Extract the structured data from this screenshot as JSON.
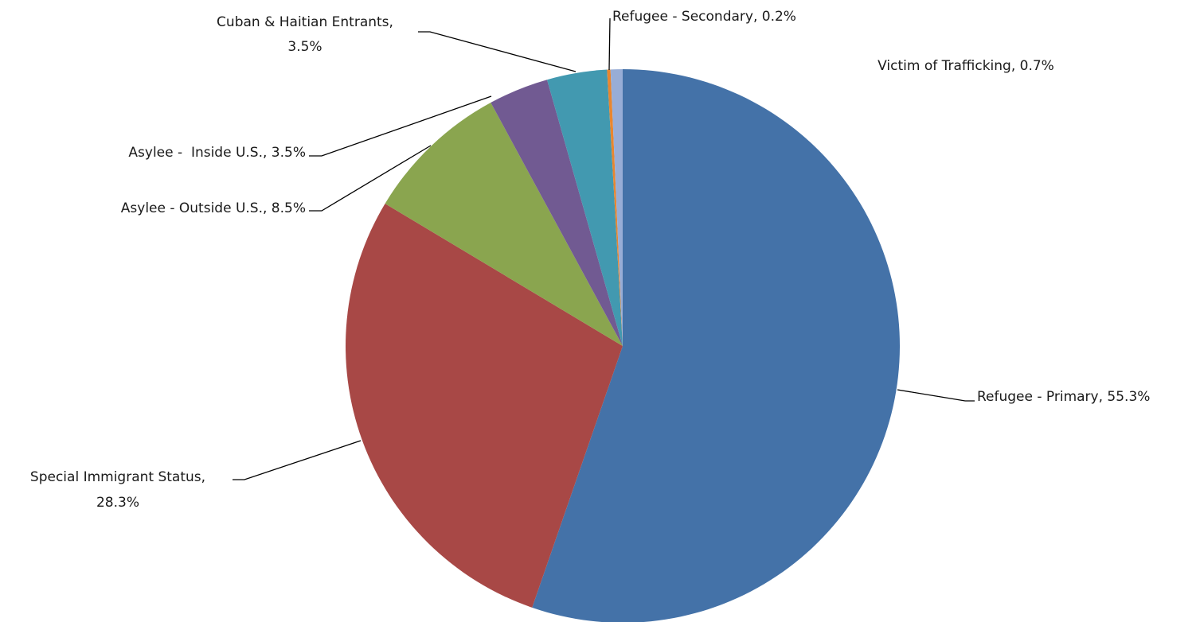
{
  "chart_data": {
    "type": "pie",
    "title": "",
    "slices": [
      {
        "name": "Refugee - Primary",
        "value": 55.3,
        "label": [
          "Refugee - Primary, 55.3%"
        ],
        "color": "#4472A8"
      },
      {
        "name": "Special Immigrant Status",
        "value": 28.3,
        "label": [
          "Special Immigrant Status,",
          "28.3%"
        ],
        "color": "#A84846"
      },
      {
        "name": "Asylee - Outside U.S.",
        "value": 8.5,
        "label": [
          "Asylee - Outside U.S., 8.5%"
        ],
        "color": "#8AA54F"
      },
      {
        "name": "Asylee - Inside U.S.",
        "value": 3.5,
        "label": [
          "Asylee -  Inside U.S., 3.5%"
        ],
        "color": "#715A92"
      },
      {
        "name": "Cuban & Haitian Entrants",
        "value": 3.5,
        "label": [
          "Cuban & Haitian Entrants,",
          "3.5%"
        ],
        "color": "#4299B0"
      },
      {
        "name": "Refugee - Secondary",
        "value": 0.2,
        "label": [
          "Refugee - Secondary, 0.2%"
        ],
        "color": "#E8862F"
      },
      {
        "name": "Victim of Trafficking",
        "value": 0.7,
        "label": [
          "Victim of Trafficking, 0.7%"
        ],
        "color": "#98ADD6"
      }
    ],
    "start_angle_deg": 0,
    "direction": "clockwise",
    "legend": "none",
    "data_labels": "outside with leader lines"
  }
}
